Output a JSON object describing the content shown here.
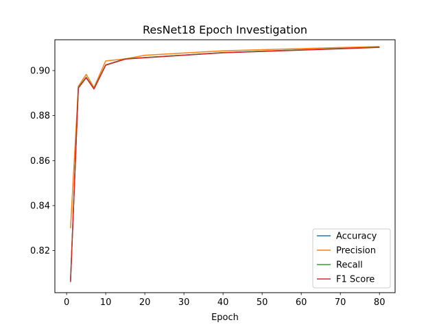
{
  "chart_data": {
    "type": "line",
    "title": "ResNet18 Epoch Investigation",
    "xlabel": "Epoch",
    "ylabel": "",
    "xlim": [
      -3,
      84
    ],
    "ylim": [
      0.8013,
      0.9137
    ],
    "xticks": [
      0,
      10,
      20,
      30,
      40,
      50,
      60,
      70,
      80
    ],
    "yticks": [
      0.82,
      0.84,
      0.86,
      0.88,
      0.9
    ],
    "ytick_labels": [
      "0.82",
      "0.84",
      "0.86",
      "0.88",
      "0.90"
    ],
    "grid": false,
    "legend_position": "lower right",
    "x": [
      1,
      3,
      5,
      7,
      10,
      15,
      20,
      40,
      80
    ],
    "series": [
      {
        "name": "Accuracy",
        "color": "#1f77b4",
        "values": [
          0.8065,
          0.8925,
          0.897,
          0.892,
          0.9025,
          0.9052,
          0.9058,
          0.908,
          0.9104
        ]
      },
      {
        "name": "Precision",
        "color": "#ff7f0e",
        "values": [
          0.83,
          0.893,
          0.8983,
          0.8925,
          0.9043,
          0.9052,
          0.9068,
          0.9088,
          0.9107
        ]
      },
      {
        "name": "Recall",
        "color": "#2ca02c",
        "values": [
          0.8065,
          0.8925,
          0.897,
          0.892,
          0.9025,
          0.9052,
          0.9058,
          0.908,
          0.9104
        ]
      },
      {
        "name": "F1 Score",
        "color": "#d62728",
        "values": [
          0.806,
          0.8922,
          0.8968,
          0.8918,
          0.9024,
          0.9051,
          0.9057,
          0.9079,
          0.9103
        ]
      }
    ]
  }
}
